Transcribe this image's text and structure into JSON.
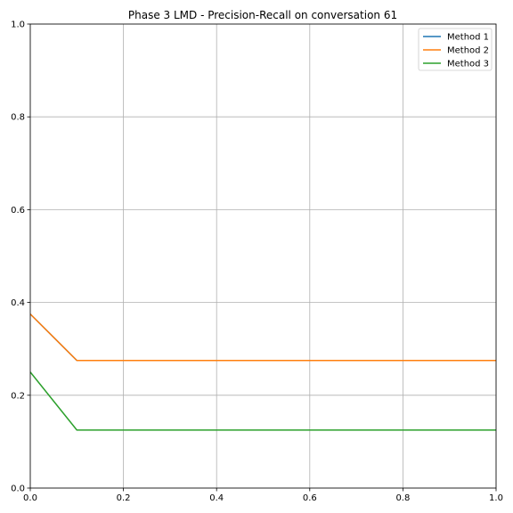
{
  "chart_data": {
    "type": "line",
    "title": "Phase 3 LMD - Precision-Recall on conversation 61",
    "xlabel": "",
    "ylabel": "",
    "xlim": [
      0,
      1
    ],
    "ylim": [
      0,
      1
    ],
    "grid": true,
    "legend_position": "top-right",
    "x_ticks": [
      "0.0",
      "0.2",
      "0.4",
      "0.6",
      "0.8",
      "1.0"
    ],
    "y_ticks": [
      "0.0",
      "0.2",
      "0.4",
      "0.6",
      "0.8",
      "1.0"
    ],
    "series": [
      {
        "name": "Method 1",
        "color": "#1f77b4",
        "x": [
          0.0,
          0.1,
          0.2,
          0.3,
          0.4,
          0.5,
          0.6,
          0.7,
          0.8,
          0.9,
          1.0
        ],
        "y": [
          0.375,
          0.275,
          0.275,
          0.275,
          0.275,
          0.275,
          0.275,
          0.275,
          0.275,
          0.275,
          0.275
        ]
      },
      {
        "name": "Method 2",
        "color": "#ff7f0e",
        "x": [
          0.0,
          0.1,
          0.2,
          0.3,
          0.4,
          0.5,
          0.6,
          0.7,
          0.8,
          0.9,
          1.0
        ],
        "y": [
          0.375,
          0.275,
          0.275,
          0.275,
          0.275,
          0.275,
          0.275,
          0.275,
          0.275,
          0.275,
          0.275
        ]
      },
      {
        "name": "Method 3",
        "color": "#2ca02c",
        "x": [
          0.0,
          0.1,
          0.2,
          0.3,
          0.4,
          0.5,
          0.6,
          0.7,
          0.8,
          0.9,
          1.0
        ],
        "y": [
          0.25,
          0.125,
          0.125,
          0.125,
          0.125,
          0.125,
          0.125,
          0.125,
          0.125,
          0.125,
          0.125
        ]
      }
    ]
  }
}
